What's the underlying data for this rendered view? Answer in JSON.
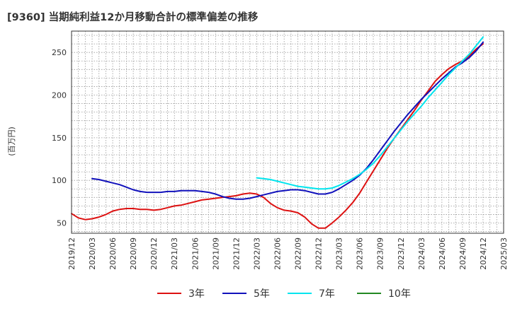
{
  "title": "[9360]  当期純利益12か月移動合計の標準偏差の推移",
  "chart_data": {
    "type": "line",
    "title": "[9360]  当期純利益12か月移動合計の標準偏差の推移",
    "xlabel": "",
    "ylabel": "(百万円)",
    "ylim": [
      38,
      275
    ],
    "yticks": [
      50,
      100,
      150,
      200,
      250
    ],
    "xticks": [
      "2019/12",
      "2020/03",
      "2020/06",
      "2020/09",
      "2020/12",
      "2021/03",
      "2021/06",
      "2021/09",
      "2021/12",
      "2022/03",
      "2022/06",
      "2022/09",
      "2022/12",
      "2023/03",
      "2023/06",
      "2023/09",
      "2023/12",
      "2024/03",
      "2024/06",
      "2024/09",
      "2024/12",
      "2025/03"
    ],
    "grid": true,
    "legend_position": "bottom",
    "series": [
      {
        "name": "3年",
        "color": "#dd1111",
        "x": [
          "2019/12",
          "2020/01",
          "2020/02",
          "2020/03",
          "2020/04",
          "2020/05",
          "2020/06",
          "2020/07",
          "2020/08",
          "2020/09",
          "2020/10",
          "2020/11",
          "2020/12",
          "2021/01",
          "2021/02",
          "2021/03",
          "2021/04",
          "2021/05",
          "2021/06",
          "2021/07",
          "2021/08",
          "2021/09",
          "2021/10",
          "2021/11",
          "2021/12",
          "2022/01",
          "2022/02",
          "2022/03",
          "2022/04",
          "2022/05",
          "2022/06",
          "2022/07",
          "2022/08",
          "2022/09",
          "2022/10",
          "2022/11",
          "2022/12",
          "2023/01",
          "2023/02",
          "2023/03",
          "2023/04",
          "2023/05",
          "2023/06",
          "2023/07",
          "2023/08",
          "2023/09",
          "2023/10",
          "2023/11",
          "2023/12",
          "2024/01",
          "2024/02",
          "2024/03",
          "2024/04",
          "2024/05",
          "2024/06",
          "2024/07",
          "2024/08",
          "2024/09",
          "2024/10",
          "2024/11",
          "2024/12"
        ],
        "values": [
          61,
          56,
          54,
          55,
          57,
          60,
          64,
          66,
          67,
          67,
          66,
          66,
          65,
          66,
          68,
          70,
          71,
          73,
          75,
          77,
          78,
          79,
          80,
          81,
          82,
          84,
          85,
          84,
          80,
          73,
          68,
          65,
          64,
          62,
          57,
          49,
          44,
          44,
          50,
          57,
          65,
          74,
          85,
          98,
          111,
          124,
          137,
          149,
          160,
          171,
          182,
          194,
          205,
          216,
          224,
          231,
          236,
          240,
          246,
          254,
          260
        ]
      },
      {
        "name": "5年",
        "color": "#1111bb",
        "x": [
          "2020/03",
          "2020/04",
          "2020/05",
          "2020/06",
          "2020/07",
          "2020/08",
          "2020/09",
          "2020/10",
          "2020/11",
          "2020/12",
          "2021/01",
          "2021/02",
          "2021/03",
          "2021/04",
          "2021/05",
          "2021/06",
          "2021/07",
          "2021/08",
          "2021/09",
          "2021/10",
          "2021/11",
          "2021/12",
          "2022/01",
          "2022/02",
          "2022/03",
          "2022/04",
          "2022/05",
          "2022/06",
          "2022/07",
          "2022/08",
          "2022/09",
          "2022/10",
          "2022/11",
          "2022/12",
          "2023/01",
          "2023/02",
          "2023/03",
          "2023/04",
          "2023/05",
          "2023/06",
          "2023/07",
          "2023/08",
          "2023/09",
          "2023/10",
          "2023/11",
          "2023/12",
          "2024/01",
          "2024/02",
          "2024/03",
          "2024/04",
          "2024/05",
          "2024/06",
          "2024/07",
          "2024/08",
          "2024/09",
          "2024/10",
          "2024/11",
          "2024/12"
        ],
        "values": [
          102,
          101,
          99,
          97,
          95,
          92,
          89,
          87,
          86,
          86,
          86,
          87,
          87,
          88,
          88,
          88,
          87,
          86,
          84,
          81,
          79,
          78,
          78,
          79,
          81,
          83,
          85,
          87,
          88,
          89,
          89,
          88,
          86,
          84,
          84,
          86,
          90,
          95,
          100,
          106,
          114,
          124,
          135,
          146,
          157,
          167,
          177,
          186,
          195,
          203,
          211,
          219,
          226,
          233,
          238,
          244,
          252,
          262
        ]
      },
      {
        "name": "7年",
        "color": "#00e5ee",
        "x": [
          "2022/03",
          "2022/04",
          "2022/05",
          "2022/06",
          "2022/07",
          "2022/08",
          "2022/09",
          "2022/10",
          "2022/11",
          "2022/12",
          "2023/01",
          "2023/02",
          "2023/03",
          "2023/04",
          "2023/05",
          "2023/06",
          "2023/07",
          "2023/08",
          "2023/09",
          "2023/10",
          "2023/11",
          "2023/12",
          "2024/01",
          "2024/02",
          "2024/03",
          "2024/04",
          "2024/05",
          "2024/06",
          "2024/07",
          "2024/08",
          "2024/09",
          "2024/10",
          "2024/11",
          "2024/12"
        ],
        "values": [
          103,
          102,
          101,
          99,
          97,
          95,
          93,
          92,
          91,
          90,
          90,
          91,
          94,
          98,
          102,
          107,
          113,
          120,
          129,
          139,
          149,
          159,
          169,
          178,
          187,
          197,
          206,
          215,
          224,
          232,
          240,
          248,
          258,
          268
        ]
      },
      {
        "name": "10年",
        "color": "#228822",
        "x": [],
        "values": []
      }
    ]
  }
}
